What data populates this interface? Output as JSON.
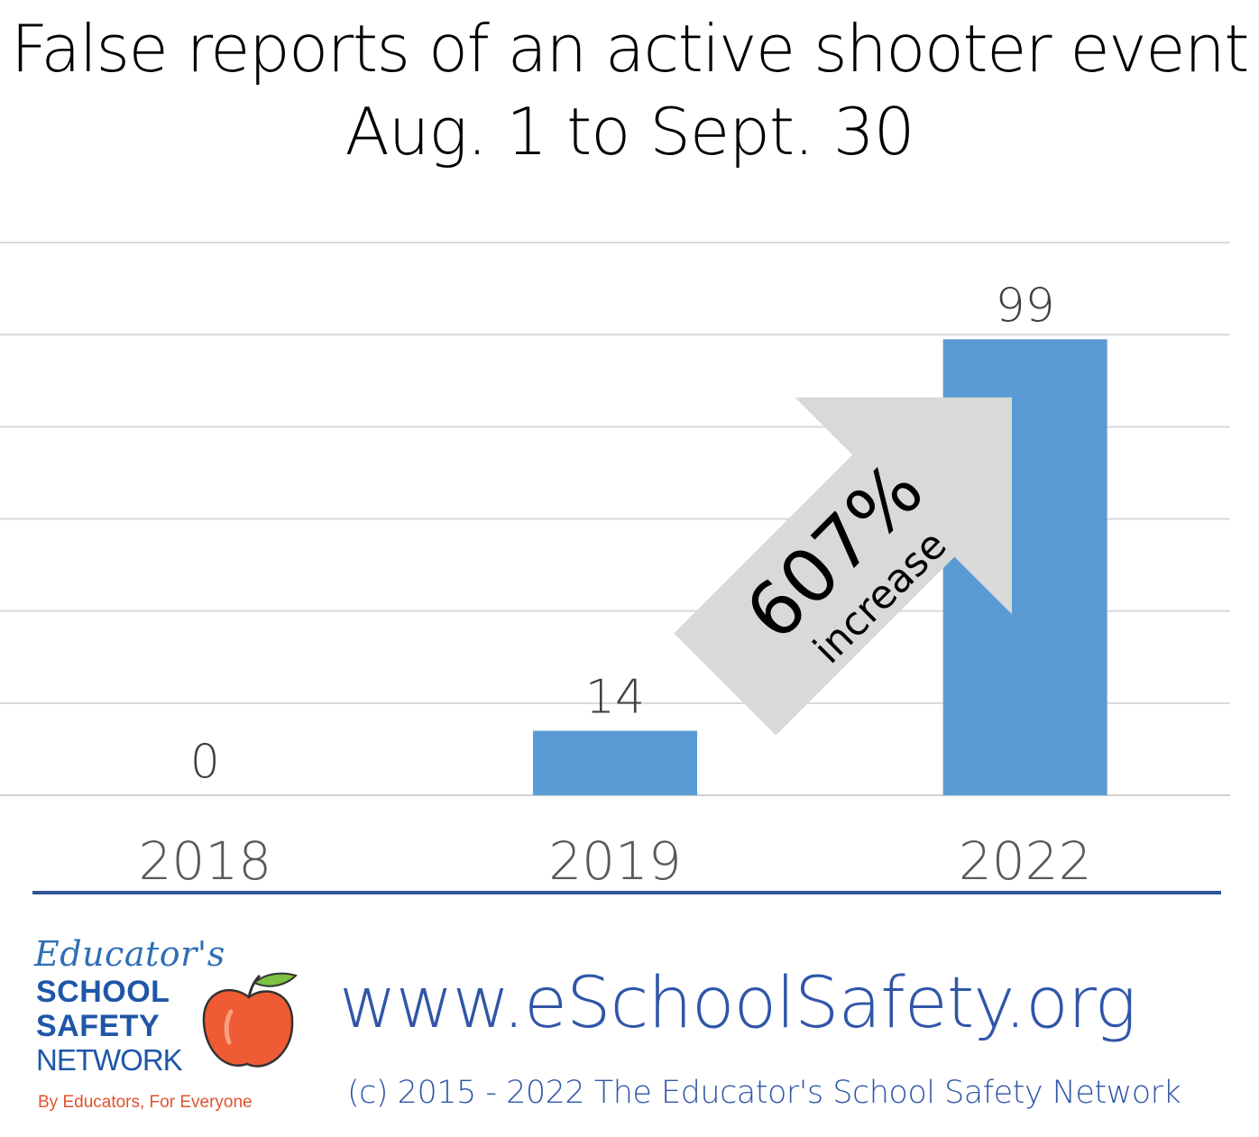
{
  "header": {
    "title_line1": "False reports of an active shooter event",
    "title_line2": "Aug. 1 to Sept. 30"
  },
  "chart_data": {
    "type": "bar",
    "title": "False reports of an active shooter event Aug. 1 to Sept. 30",
    "categories": [
      "2018",
      "2019",
      "2022"
    ],
    "values": [
      0,
      14,
      99
    ],
    "data_labels": [
      "0",
      "14",
      "99"
    ],
    "ylim": [
      0,
      120
    ],
    "grid": true,
    "bar_color": "#5b9bd5",
    "annotation": {
      "value": "607%",
      "text": "increase",
      "color": "#d9d9d9"
    }
  },
  "footer": {
    "logo": {
      "line1": "Educator's",
      "line2": "SCHOOL",
      "line3": "SAFETY",
      "line4": "NETWORK",
      "tagline": "By Educators, For Everyone"
    },
    "url": "www.eSchoolSafety.org",
    "copyright": "(c) 2015 - 2022 The Educator's School Safety Network"
  },
  "colors": {
    "brand_blue": "#2f56a8",
    "accent_orange": "#e0532e",
    "divider": "#2f5597"
  }
}
